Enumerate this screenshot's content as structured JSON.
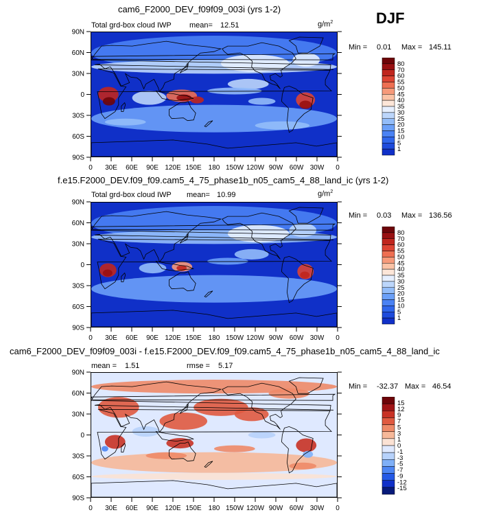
{
  "season": "DJF",
  "colors": {
    "pos": [
      "#1a1a8c",
      "#0d1ea8",
      "#1030c8",
      "#1e4bdc",
      "#2f66ec",
      "#4a82f4",
      "#6ba0f8",
      "#93bdf9",
      "#bcd6fb",
      "#e6efff",
      "#fde6d8",
      "#fbc3a6",
      "#f79a7a",
      "#ee6f52",
      "#dd4433",
      "#c0261e",
      "#981012",
      "#6e0509"
    ],
    "diff": [
      "#071a7a",
      "#1030c8",
      "#2459e6",
      "#4d86f4",
      "#7fb0f8",
      "#b7d2fb",
      "#dfe9ff",
      "#fbe2d4",
      "#f6b899",
      "#ee8a68",
      "#e05a40",
      "#c83225",
      "#a01416",
      "#6e0509"
    ]
  },
  "charts": [
    {
      "title": "cam6_F2000_DEV_f09f09_003i (yrs 1-2)",
      "field_label": "Total grd-box cloud IWP",
      "stat_label": "mean=",
      "stat_value": "12.51",
      "units": "g/m",
      "units_sup": "2",
      "min_label": "Min =",
      "min_value": "0.01",
      "max_label": "Max =",
      "max_value": "145.11"
    },
    {
      "title": "f.e15.F2000_DEV.f09_f09.cam5_4_75_phase1b_n05_cam5_4_88_land_ic (yrs 1-2)",
      "field_label": "Total grd-box cloud IWP",
      "stat_label": "mean=",
      "stat_value": "10.99",
      "units": "g/m",
      "units_sup": "2",
      "min_label": "Min =",
      "min_value": "0.03",
      "max_label": "Max =",
      "max_value": "136.56"
    },
    {
      "title": "cam6_F2000_DEV_f09f09_003i - f.e15.F2000_DEV.f09_f09.cam5_4_75_phase1b_n05_cam5_4_88_land_ic",
      "stat_label": "mean =",
      "stat_value": "1.51",
      "stat2_label": "rmse =",
      "stat2_value": "5.17",
      "min_label": "Min =",
      "min_value": "-32.37",
      "max_label": "Max =",
      "max_value": "46.54"
    }
  ],
  "chart_data": [
    {
      "type": "heatmap",
      "title": "cam6_F2000_DEV_f09f09_003i (yrs 1-2)",
      "xlabel": "",
      "ylabel": "",
      "x_ticks": [
        "0",
        "30E",
        "60E",
        "90E",
        "120E",
        "150E",
        "180",
        "150W",
        "120W",
        "90W",
        "60W",
        "30W",
        "0"
      ],
      "y_ticks": [
        "90N",
        "60N",
        "30N",
        "0",
        "30S",
        "60S",
        "90S"
      ],
      "xlim": [
        0,
        360
      ],
      "ylim": [
        -90,
        90
      ],
      "colorbar_levels": [
        "80",
        "70",
        "60",
        "55",
        "50",
        "45",
        "40",
        "35",
        "30",
        "25",
        "20",
        "15",
        "10",
        "5",
        "1"
      ],
      "mean": 12.51,
      "min": 0.01,
      "max": 145.11
    },
    {
      "type": "heatmap",
      "title": "f.e15.F2000_DEV.f09_f09.cam5_4_75_phase1b_n05_cam5_4_88_land_ic (yrs 1-2)",
      "xlabel": "",
      "ylabel": "",
      "x_ticks": [
        "0",
        "30E",
        "60E",
        "90E",
        "120E",
        "150E",
        "180",
        "150W",
        "120W",
        "90W",
        "60W",
        "30W",
        "0"
      ],
      "y_ticks": [
        "90N",
        "60N",
        "30N",
        "0",
        "30S",
        "60S",
        "90S"
      ],
      "xlim": [
        0,
        360
      ],
      "ylim": [
        -90,
        90
      ],
      "colorbar_levels": [
        "80",
        "70",
        "60",
        "55",
        "50",
        "45",
        "40",
        "35",
        "30",
        "25",
        "20",
        "15",
        "10",
        "5",
        "1"
      ],
      "mean": 10.99,
      "min": 0.03,
      "max": 136.56
    },
    {
      "type": "heatmap",
      "title": "cam6_F2000_DEV_f09f09_003i - f.e15.F2000_DEV.f09_f09.cam5_4_75_phase1b_n05_cam5_4_88_land_ic",
      "xlabel": "",
      "ylabel": "",
      "x_ticks": [
        "0",
        "30E",
        "60E",
        "90E",
        "120E",
        "150E",
        "180",
        "150W",
        "120W",
        "90W",
        "60W",
        "30W",
        "0"
      ],
      "y_ticks": [
        "90N",
        "60N",
        "30N",
        "0",
        "30S",
        "60S",
        "90S"
      ],
      "xlim": [
        0,
        360
      ],
      "ylim": [
        -90,
        90
      ],
      "colorbar_levels": [
        "15",
        "12",
        "9",
        "7",
        "5",
        "3",
        "1",
        "0",
        "-1",
        "-3",
        "-5",
        "-7",
        "-9",
        "-12",
        "-15"
      ],
      "mean": 1.51,
      "rmse": 5.17,
      "min": -32.37,
      "max": 46.54
    }
  ]
}
